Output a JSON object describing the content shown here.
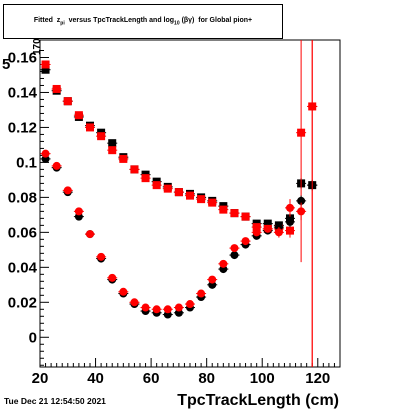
{
  "title": {
    "prefix": "Fitted",
    "var_main": "z",
    "var_sub": "pi",
    "mid": "versus TpcTrackLength and log",
    "log_sub": "10",
    "log_sup": "(βγ)",
    "suffix": "for Global pion+"
  },
  "footer": {
    "timestamp": "Tue Dec 21 12:54:50 2021"
  },
  "chart_data": {
    "type": "scatter",
    "title": "Fitted z_pi versus TpcTrackLength and log10(βγ) for Global pion+",
    "xlabel": "TpcTrackLength (cm)",
    "ylabel": "",
    "xlim": [
      20,
      128
    ],
    "ylim": [
      -0.017,
      0.17
    ],
    "x_ticks": [
      20,
      40,
      60,
      80,
      100,
      120
    ],
    "x_tick_labels": [
      "20",
      "40",
      "60",
      "80",
      "100",
      "120"
    ],
    "y_ticks": [
      0,
      0.02,
      0.04,
      0.06,
      0.08,
      0.1,
      0.12,
      0.14,
      0.16
    ],
    "y_tick_labels": [
      "0",
      "0.02",
      "0.04",
      "0.06",
      "0.08",
      "0.1",
      "0.12",
      "0.14",
      "0.16"
    ],
    "partial_labels": {
      "y_top_fragment": "170",
      "y_top_prefix": "5"
    },
    "grid": false,
    "colors": {
      "black": "#000000",
      "red": "#ff0000"
    },
    "series": [
      {
        "marker": "square",
        "color": "#000000",
        "x": [
          22,
          26,
          30,
          34,
          38,
          42,
          46,
          50,
          54,
          58,
          62,
          66,
          70,
          74,
          78,
          82,
          86,
          90,
          94,
          98,
          102,
          106,
          110,
          114,
          118
        ],
        "y": [
          0.153,
          0.141,
          0.135,
          0.126,
          0.121,
          0.117,
          0.111,
          0.103,
          0.096,
          0.093,
          0.089,
          0.086,
          0.083,
          0.082,
          0.08,
          0.078,
          0.075,
          0.071,
          0.069,
          0.065,
          0.065,
          0.064,
          0.068,
          0.088,
          0.087
        ],
        "yerr": [
          0.002,
          0.002,
          0.002,
          0.002,
          0.002,
          0.002,
          0.002,
          0.002,
          0.002,
          0.002,
          0.002,
          0.002,
          0.002,
          0.002,
          0.002,
          0.002,
          0.002,
          0.002,
          0.002,
          0.002,
          0.002,
          0.002,
          0.004,
          0.003,
          0.002
        ]
      },
      {
        "marker": "square",
        "color": "#ff0000",
        "x": [
          22,
          26,
          30,
          34,
          38,
          42,
          46,
          50,
          54,
          58,
          62,
          66,
          70,
          74,
          78,
          82,
          86,
          90,
          94,
          98,
          102,
          106,
          110,
          114,
          118
        ],
        "y": [
          0.156,
          0.142,
          0.135,
          0.127,
          0.12,
          0.115,
          0.107,
          0.102,
          0.096,
          0.091,
          0.087,
          0.085,
          0.083,
          0.081,
          0.079,
          0.077,
          0.073,
          0.071,
          0.069,
          0.063,
          0.062,
          0.062,
          0.061,
          0.117,
          0.132
        ],
        "yerr": [
          0.002,
          0.002,
          0.002,
          0.002,
          0.002,
          0.002,
          0.002,
          0.002,
          0.002,
          0.002,
          0.002,
          0.002,
          0.002,
          0.002,
          0.002,
          0.002,
          0.002,
          0.002,
          0.002,
          0.002,
          0.002,
          0.003,
          0.004,
          0.074,
          0.24
        ]
      },
      {
        "marker": "circle",
        "color": "#000000",
        "x": [
          22,
          26,
          30,
          34,
          38,
          42,
          46,
          50,
          54,
          58,
          62,
          66,
          70,
          74,
          78,
          82,
          86,
          90,
          94,
          98,
          102,
          106,
          110,
          114,
          118
        ],
        "y": [
          0.102,
          0.097,
          0.083,
          0.069,
          0.059,
          0.045,
          0.033,
          0.025,
          0.019,
          0.015,
          0.014,
          0.013,
          0.014,
          0.017,
          0.023,
          0.03,
          0.039,
          0.047,
          0.053,
          0.058,
          0.061,
          0.063,
          0.066,
          0.078,
          0.087
        ],
        "yerr": [
          0.002,
          0.002,
          0.002,
          0.002,
          0.002,
          0.002,
          0.002,
          0.002,
          0.002,
          0.002,
          0.002,
          0.002,
          0.002,
          0.002,
          0.002,
          0.002,
          0.002,
          0.002,
          0.002,
          0.002,
          0.002,
          0.002,
          0.003,
          0.003,
          0.003
        ]
      },
      {
        "marker": "circle",
        "color": "#ff0000",
        "x": [
          22,
          26,
          30,
          34,
          38,
          42,
          46,
          50,
          54,
          58,
          62,
          66,
          70,
          74,
          78,
          82,
          86,
          90,
          94,
          98,
          102,
          106,
          110,
          114,
          118
        ],
        "y": [
          0.105,
          0.098,
          0.084,
          0.072,
          0.059,
          0.046,
          0.034,
          0.026,
          0.02,
          0.017,
          0.016,
          0.016,
          0.017,
          0.019,
          0.025,
          0.033,
          0.042,
          0.051,
          0.055,
          0.06,
          0.062,
          0.06,
          0.074,
          0.072,
          0.132
        ],
        "yerr": [
          0.002,
          0.002,
          0.002,
          0.002,
          0.002,
          0.002,
          0.002,
          0.002,
          0.002,
          0.002,
          0.002,
          0.002,
          0.002,
          0.002,
          0.002,
          0.002,
          0.002,
          0.002,
          0.002,
          0.002,
          0.002,
          0.003,
          0.005,
          0.005,
          0.24
        ]
      }
    ]
  }
}
